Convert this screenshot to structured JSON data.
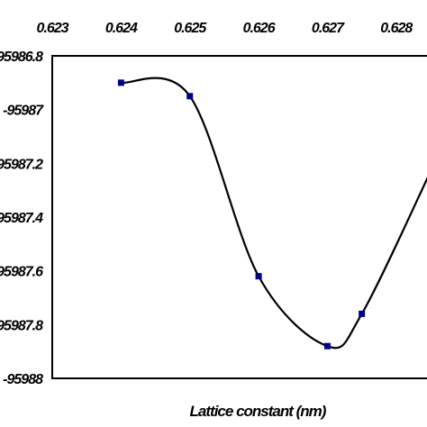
{
  "chart_data": {
    "type": "line",
    "title": "",
    "xlabel": "Lattice constant (nm)",
    "ylabel": "",
    "xlim": [
      0.623,
      0.6285
    ],
    "ylim": [
      -95988,
      -95986.8
    ],
    "x_tick_labels": [
      "0.623",
      "0.624",
      "0.625",
      "0.626",
      "0.627",
      "0.628"
    ],
    "y_tick_labels": [
      "-95986.8",
      "-95987",
      "-95987.2",
      "-95987.4",
      "-95987.6",
      "-95987.8",
      "-95988"
    ],
    "x_axis_position": "top",
    "grid": false,
    "legend": "none",
    "smooth": true,
    "series": [
      {
        "x": [
          0.624,
          0.625,
          0.626,
          0.627,
          0.6275,
          0.6285
        ],
        "y": [
          -95986.9,
          -95986.95,
          -95987.62,
          -95987.88,
          -95987.76,
          -95987.23
        ],
        "color": "#000000",
        "marker": "square",
        "marker_color": "#000080"
      }
    ]
  }
}
